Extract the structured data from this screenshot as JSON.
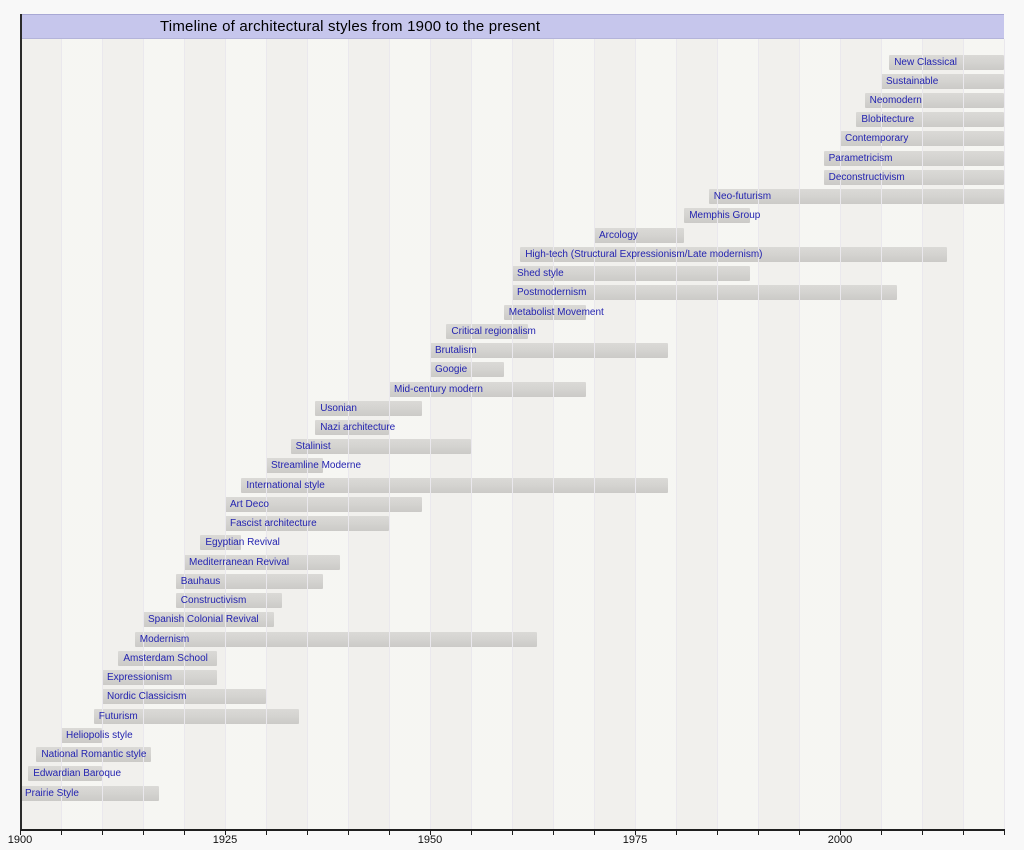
{
  "title": "Timeline of architectural styles from 1900 to the present",
  "colors": {
    "page_bg": "#f8f8f8",
    "title_bg": "#c6c6ec",
    "title_text": "#000000",
    "plot_bg": "#f6f5f2",
    "gridline": "#eae8ed",
    "bar_fill": "#d4d3d0",
    "label_text": "#2323b0",
    "axis_line": "#1f1f1f",
    "tick_label": "#111111"
  },
  "chart_data": {
    "type": "bar",
    "subtype": "horizontal-timeline",
    "title": "Timeline of architectural styles from 1900 to the present",
    "xlabel": "",
    "ylabel": "",
    "xlim": [
      1900,
      2020
    ],
    "x_major_ticks": [
      1900,
      1925,
      1950,
      1975,
      2000
    ],
    "x_minor_tick_interval": 5,
    "grid": "vertical gridlines every 5 years",
    "present_year": 2020,
    "items": [
      {
        "label": "New Classical",
        "start": 2006,
        "end": 2020,
        "ongoing": true
      },
      {
        "label": "Sustainable",
        "start": 2005,
        "end": 2020,
        "ongoing": true
      },
      {
        "label": "Neomodern",
        "start": 2003,
        "end": 2020,
        "ongoing": true
      },
      {
        "label": "Blobitecture",
        "start": 2002,
        "end": 2020,
        "ongoing": true
      },
      {
        "label": "Contemporary",
        "start": 2000,
        "end": 2020,
        "ongoing": true
      },
      {
        "label": "Parametricism",
        "start": 1998,
        "end": 2020,
        "ongoing": true
      },
      {
        "label": "Deconstructivism",
        "start": 1998,
        "end": 2020,
        "ongoing": true
      },
      {
        "label": "Neo-futurism",
        "start": 1984,
        "end": 2020,
        "ongoing": true
      },
      {
        "label": "Memphis Group",
        "start": 1981,
        "end": 1989,
        "ongoing": false
      },
      {
        "label": "Arcology",
        "start": 1970,
        "end": 1981,
        "ongoing": false
      },
      {
        "label": "High-tech (Structural Expressionism/Late modernism)",
        "start": 1961,
        "end": 2013,
        "ongoing": false
      },
      {
        "label": "Shed style",
        "start": 1960,
        "end": 1989,
        "ongoing": false
      },
      {
        "label": "Postmodernism",
        "start": 1960,
        "end": 2007,
        "ongoing": false
      },
      {
        "label": "Metabolist Movement",
        "start": 1959,
        "end": 1969,
        "ongoing": false
      },
      {
        "label": "Critical regionalism",
        "start": 1952,
        "end": 1962,
        "ongoing": false
      },
      {
        "label": "Brutalism",
        "start": 1950,
        "end": 1979,
        "ongoing": false
      },
      {
        "label": "Googie",
        "start": 1950,
        "end": 1959,
        "ongoing": false
      },
      {
        "label": "Mid-century modern",
        "start": 1945,
        "end": 1969,
        "ongoing": false
      },
      {
        "label": "Usonian",
        "start": 1936,
        "end": 1949,
        "ongoing": false
      },
      {
        "label": "Nazi architecture",
        "start": 1936,
        "end": 1945,
        "ongoing": false
      },
      {
        "label": "Stalinist",
        "start": 1933,
        "end": 1955,
        "ongoing": false
      },
      {
        "label": "Streamline Moderne",
        "start": 1930,
        "end": 1937,
        "ongoing": false
      },
      {
        "label": "International style",
        "start": 1927,
        "end": 1979,
        "ongoing": false
      },
      {
        "label": "Art Deco",
        "start": 1925,
        "end": 1949,
        "ongoing": false
      },
      {
        "label": "Fascist architecture",
        "start": 1925,
        "end": 1945,
        "ongoing": false
      },
      {
        "label": "Egyptian Revival",
        "start": 1922,
        "end": 1927,
        "ongoing": false
      },
      {
        "label": "Mediterranean Revival",
        "start": 1920,
        "end": 1939,
        "ongoing": false
      },
      {
        "label": "Bauhaus",
        "start": 1919,
        "end": 1937,
        "ongoing": false
      },
      {
        "label": "Constructivism",
        "start": 1919,
        "end": 1932,
        "ongoing": false
      },
      {
        "label": "Spanish Colonial Revival",
        "start": 1915,
        "end": 1931,
        "ongoing": false
      },
      {
        "label": "Modernism",
        "start": 1914,
        "end": 1963,
        "ongoing": false
      },
      {
        "label": "Amsterdam School",
        "start": 1912,
        "end": 1924,
        "ongoing": false
      },
      {
        "label": "Expressionism",
        "start": 1910,
        "end": 1924,
        "ongoing": false
      },
      {
        "label": "Nordic Classicism",
        "start": 1910,
        "end": 1930,
        "ongoing": false
      },
      {
        "label": "Futurism",
        "start": 1909,
        "end": 1934,
        "ongoing": false
      },
      {
        "label": "Heliopolis style",
        "start": 1905,
        "end": 1910,
        "ongoing": false
      },
      {
        "label": "National Romantic style",
        "start": 1902,
        "end": 1916,
        "ongoing": false
      },
      {
        "label": "Edwardian Baroque",
        "start": 1901,
        "end": 1910,
        "ongoing": false
      },
      {
        "label": "Prairie Style",
        "start": 1900,
        "end": 1917,
        "ongoing": false
      }
    ]
  }
}
